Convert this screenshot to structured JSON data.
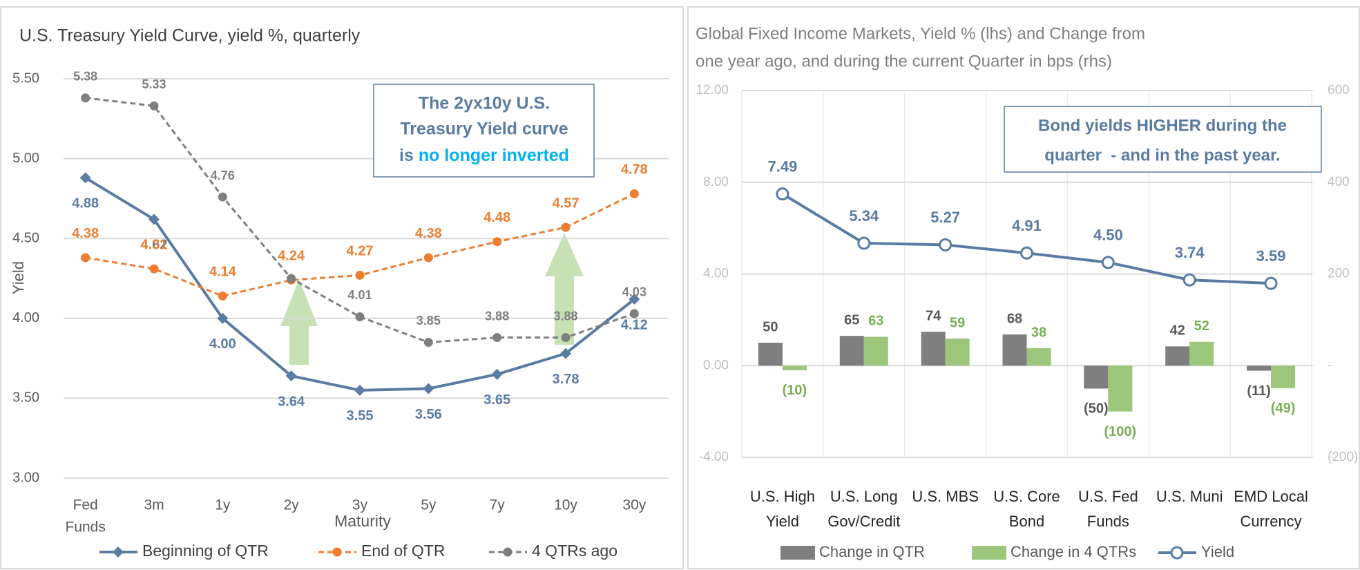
{
  "chart_data": [
    {
      "type": "line",
      "title": "U.S. Treasury Yield Curve, yield %, quarterly",
      "xlabel": "Maturity",
      "ylabel": "Yield",
      "categories": [
        [
          "Fed",
          "Funds"
        ],
        [
          "3m"
        ],
        [
          "1y"
        ],
        [
          "2y"
        ],
        [
          "3y"
        ],
        [
          "5y"
        ],
        [
          "7y"
        ],
        [
          "10y"
        ],
        [
          "30y"
        ]
      ],
      "ylim": [
        3,
        5.5
      ],
      "yticks": [
        {
          "value": 3,
          "label": "3.00"
        },
        {
          "value": 3.5,
          "label": "3.50"
        },
        {
          "value": 4,
          "label": "4.00"
        },
        {
          "value": 4.5,
          "label": "4.50"
        },
        {
          "value": 5,
          "label": "5.00"
        },
        {
          "value": 5.5,
          "label": "5.50"
        }
      ],
      "grid": true,
      "series": [
        {
          "name": "Beginning of QTR",
          "color": "#5a7ba2",
          "marker": "diamond",
          "dash": false,
          "values": [
            4.88,
            4.62,
            4.0,
            3.64,
            3.55,
            3.56,
            3.65,
            3.78,
            4.12
          ],
          "value_labels": [
            "4.88",
            "4.62",
            "4.00",
            "3.64",
            "3.55",
            "3.56",
            "3.65",
            "3.78",
            "4.12"
          ]
        },
        {
          "name": "End of QTR",
          "color": "#ed7d31",
          "marker": "circle",
          "dash": true,
          "values": [
            4.38,
            4.31,
            4.14,
            4.24,
            4.27,
            4.38,
            4.48,
            4.57,
            4.78
          ],
          "value_labels": [
            "4.38",
            "4.31",
            "4.14",
            "4.24",
            "4.27",
            "4.38",
            "4.48",
            "4.57",
            "4.78"
          ]
        },
        {
          "name": "4 QTRs ago",
          "color": "#7f7f7f",
          "marker": "circle",
          "dash": true,
          "values": [
            5.38,
            5.33,
            4.76,
            4.25,
            4.01,
            3.85,
            3.88,
            3.88,
            4.03
          ],
          "value_labels": [
            "5.38",
            "5.33",
            "4.76",
            null,
            "4.01",
            "3.85",
            "3.88",
            "3.88",
            "4.03"
          ]
        }
      ],
      "annotation": {
        "lines": [
          "The 2yx10y U.S.",
          "Treasury Yield curve"
        ],
        "prefix": "is",
        "highlight": "no longer inverted"
      }
    },
    {
      "type": "bar",
      "title": [
        "Global Fixed Income Markets, Yield % (lhs) and Change from",
        "one year ago, and during the current Quarter in bps (rhs)"
      ],
      "categories": [
        [
          "U.S. High",
          "Yield"
        ],
        [
          "U.S. Long",
          "Gov/Credit"
        ],
        [
          "U.S. MBS"
        ],
        [
          "U.S. Core",
          "Bond"
        ],
        [
          "U.S. Fed",
          "Funds"
        ],
        [
          "U.S. Muni"
        ],
        [
          "EMD Local",
          "Currency"
        ]
      ],
      "ylim": [
        -4,
        12
      ],
      "yticks": [
        {
          "value": -4,
          "label": "-4.00"
        },
        {
          "value": 0,
          "label": "0.00"
        },
        {
          "value": 4,
          "label": "4.00"
        },
        {
          "value": 8,
          "label": "8.00"
        },
        {
          "value": 12,
          "label": "12.00"
        }
      ],
      "y2lim": [
        -200,
        600
      ],
      "y2ticks": [
        {
          "value": -200,
          "label": "(200)"
        },
        {
          "value": 0,
          "label": "-"
        },
        200,
        400,
        600
      ],
      "grid": true,
      "series": [
        {
          "name": "Change in QTR",
          "color": "#7f7f7f",
          "axis": "y2",
          "values": [
            50,
            65,
            74,
            68,
            -50,
            42,
            -11
          ],
          "value_labels": [
            "50",
            "65",
            "74",
            "68",
            "(50)",
            "42",
            "(11)"
          ]
        },
        {
          "name": "Change in 4 QTRs",
          "color": "#9bc67b",
          "axis": "y2",
          "values": [
            -10,
            63,
            59,
            38,
            -100,
            52,
            -49
          ],
          "value_labels": [
            "(10)",
            "63",
            "59",
            "38",
            "(100)",
            "52",
            "(49)"
          ]
        },
        {
          "name": "Yield",
          "color": "#5a7ba2",
          "type": "line",
          "marker": "circle-open",
          "dash": false,
          "values": [
            7.49,
            5.34,
            5.27,
            4.91,
            4.5,
            3.74,
            3.59
          ],
          "value_labels": [
            "7.49",
            "5.34",
            "5.27",
            "4.91",
            "4.50",
            "3.74",
            "3.59"
          ]
        }
      ],
      "annotation": {
        "lines": [
          "Bond yields HIGHER during the",
          "quarter  - and in the past year."
        ]
      }
    }
  ]
}
